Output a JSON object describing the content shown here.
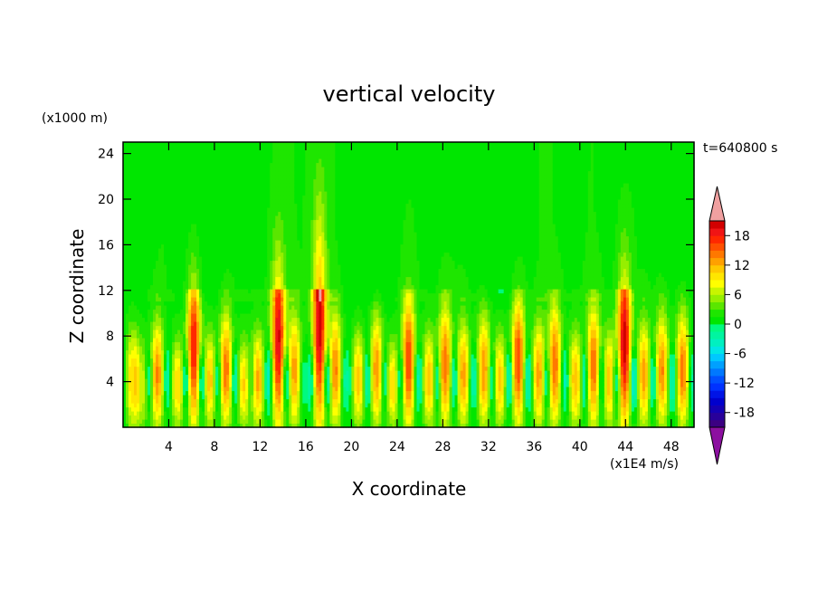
{
  "chart_data": {
    "type": "heatmap",
    "title": "vertical velocity",
    "xlabel": "X coordinate",
    "ylabel": "Z coordinate",
    "x_unit": "(x1E4 m/s)",
    "y_unit": "(x1000 m)",
    "time_label": "t=640800 s",
    "xlim": [
      0,
      50
    ],
    "ylim": [
      0,
      25
    ],
    "x_ticks": [
      4,
      8,
      12,
      16,
      20,
      24,
      28,
      32,
      36,
      40,
      44,
      48
    ],
    "y_ticks": [
      4,
      8,
      12,
      16,
      20,
      24
    ],
    "colorbar": {
      "levels": [
        -21,
        -19.5,
        -18,
        -16.5,
        -15,
        -13.5,
        -12,
        -10.5,
        -9,
        -7.5,
        -6,
        -4.5,
        -3,
        -1.5,
        0,
        1.5,
        3,
        4.5,
        6,
        7.5,
        9,
        10.5,
        12,
        13.5,
        15,
        16.5,
        18,
        19.5,
        21
      ],
      "tick_labels": [
        -18,
        -12,
        -6,
        0,
        6,
        12,
        18
      ],
      "colors": [
        "#3c0082",
        "#28009a",
        "#1400b4",
        "#0000cd",
        "#0014e6",
        "#0032ff",
        "#0050ff",
        "#0078ff",
        "#00a0ff",
        "#00c8ff",
        "#00e6e6",
        "#00f0c0",
        "#00f5a0",
        "#00fa80",
        "#00e600",
        "#1ee600",
        "#5ae600",
        "#96ef00",
        "#c8f500",
        "#ffff00",
        "#ffe600",
        "#ffc800",
        "#ffa000",
        "#ff7800",
        "#ff5000",
        "#ff2800",
        "#f01414",
        "#d20000"
      ],
      "under_color": "#8c10a0",
      "over_color": "#f0a0a0"
    },
    "plumes": [
      {
        "x": 0.8,
        "amp": 11,
        "top": 10
      },
      {
        "x": 1.6,
        "amp": 8,
        "top": 9
      },
      {
        "x": 3.0,
        "amp": 13,
        "top": 11
      },
      {
        "x": 4.8,
        "amp": 10,
        "top": 9
      },
      {
        "x": 6.2,
        "amp": 18,
        "top": 17
      },
      {
        "x": 7.6,
        "amp": 11,
        "top": 10
      },
      {
        "x": 9.0,
        "amp": 14,
        "top": 12
      },
      {
        "x": 10.6,
        "amp": 10,
        "top": 9
      },
      {
        "x": 11.8,
        "amp": 12,
        "top": 10
      },
      {
        "x": 13.6,
        "amp": 19,
        "top": 19
      },
      {
        "x": 15.0,
        "amp": 12,
        "top": 12
      },
      {
        "x": 17.2,
        "amp": 20,
        "top": 23
      },
      {
        "x": 18.6,
        "amp": 13,
        "top": 12
      },
      {
        "x": 20.6,
        "amp": 11,
        "top": 10
      },
      {
        "x": 22.2,
        "amp": 13,
        "top": 12
      },
      {
        "x": 23.6,
        "amp": 10,
        "top": 9
      },
      {
        "x": 25.0,
        "amp": 16,
        "top": 14
      },
      {
        "x": 26.8,
        "amp": 11,
        "top": 10
      },
      {
        "x": 28.2,
        "amp": 14,
        "top": 13
      },
      {
        "x": 29.8,
        "amp": 12,
        "top": 11
      },
      {
        "x": 31.6,
        "amp": 13,
        "top": 12
      },
      {
        "x": 33.0,
        "amp": 11,
        "top": 10
      },
      {
        "x": 34.6,
        "amp": 16,
        "top": 14
      },
      {
        "x": 36.4,
        "amp": 12,
        "top": 11
      },
      {
        "x": 37.8,
        "amp": 14,
        "top": 13
      },
      {
        "x": 39.6,
        "amp": 11,
        "top": 10
      },
      {
        "x": 41.2,
        "amp": 14,
        "top": 13
      },
      {
        "x": 42.6,
        "amp": 11,
        "top": 10
      },
      {
        "x": 43.9,
        "amp": 20,
        "top": 18
      },
      {
        "x": 45.6,
        "amp": 12,
        "top": 11
      },
      {
        "x": 47.2,
        "amp": 13,
        "top": 12
      },
      {
        "x": 49.0,
        "amp": 14,
        "top": 12
      }
    ],
    "upper_bands": [
      {
        "x": 3.5,
        "v": 1.2
      },
      {
        "x": 7.0,
        "v": -1.0
      },
      {
        "x": 10.0,
        "v": 1.0
      },
      {
        "x": 14.0,
        "v": 1.4
      },
      {
        "x": 17.5,
        "v": 1.8
      },
      {
        "x": 22.0,
        "v": -1.0
      },
      {
        "x": 25.0,
        "v": 1.2
      },
      {
        "x": 29.5,
        "v": 1.1
      },
      {
        "x": 33.0,
        "v": -1.0
      },
      {
        "x": 37.0,
        "v": 1.3
      },
      {
        "x": 41.0,
        "v": 1.2
      },
      {
        "x": 45.5,
        "v": 1.0
      }
    ]
  }
}
